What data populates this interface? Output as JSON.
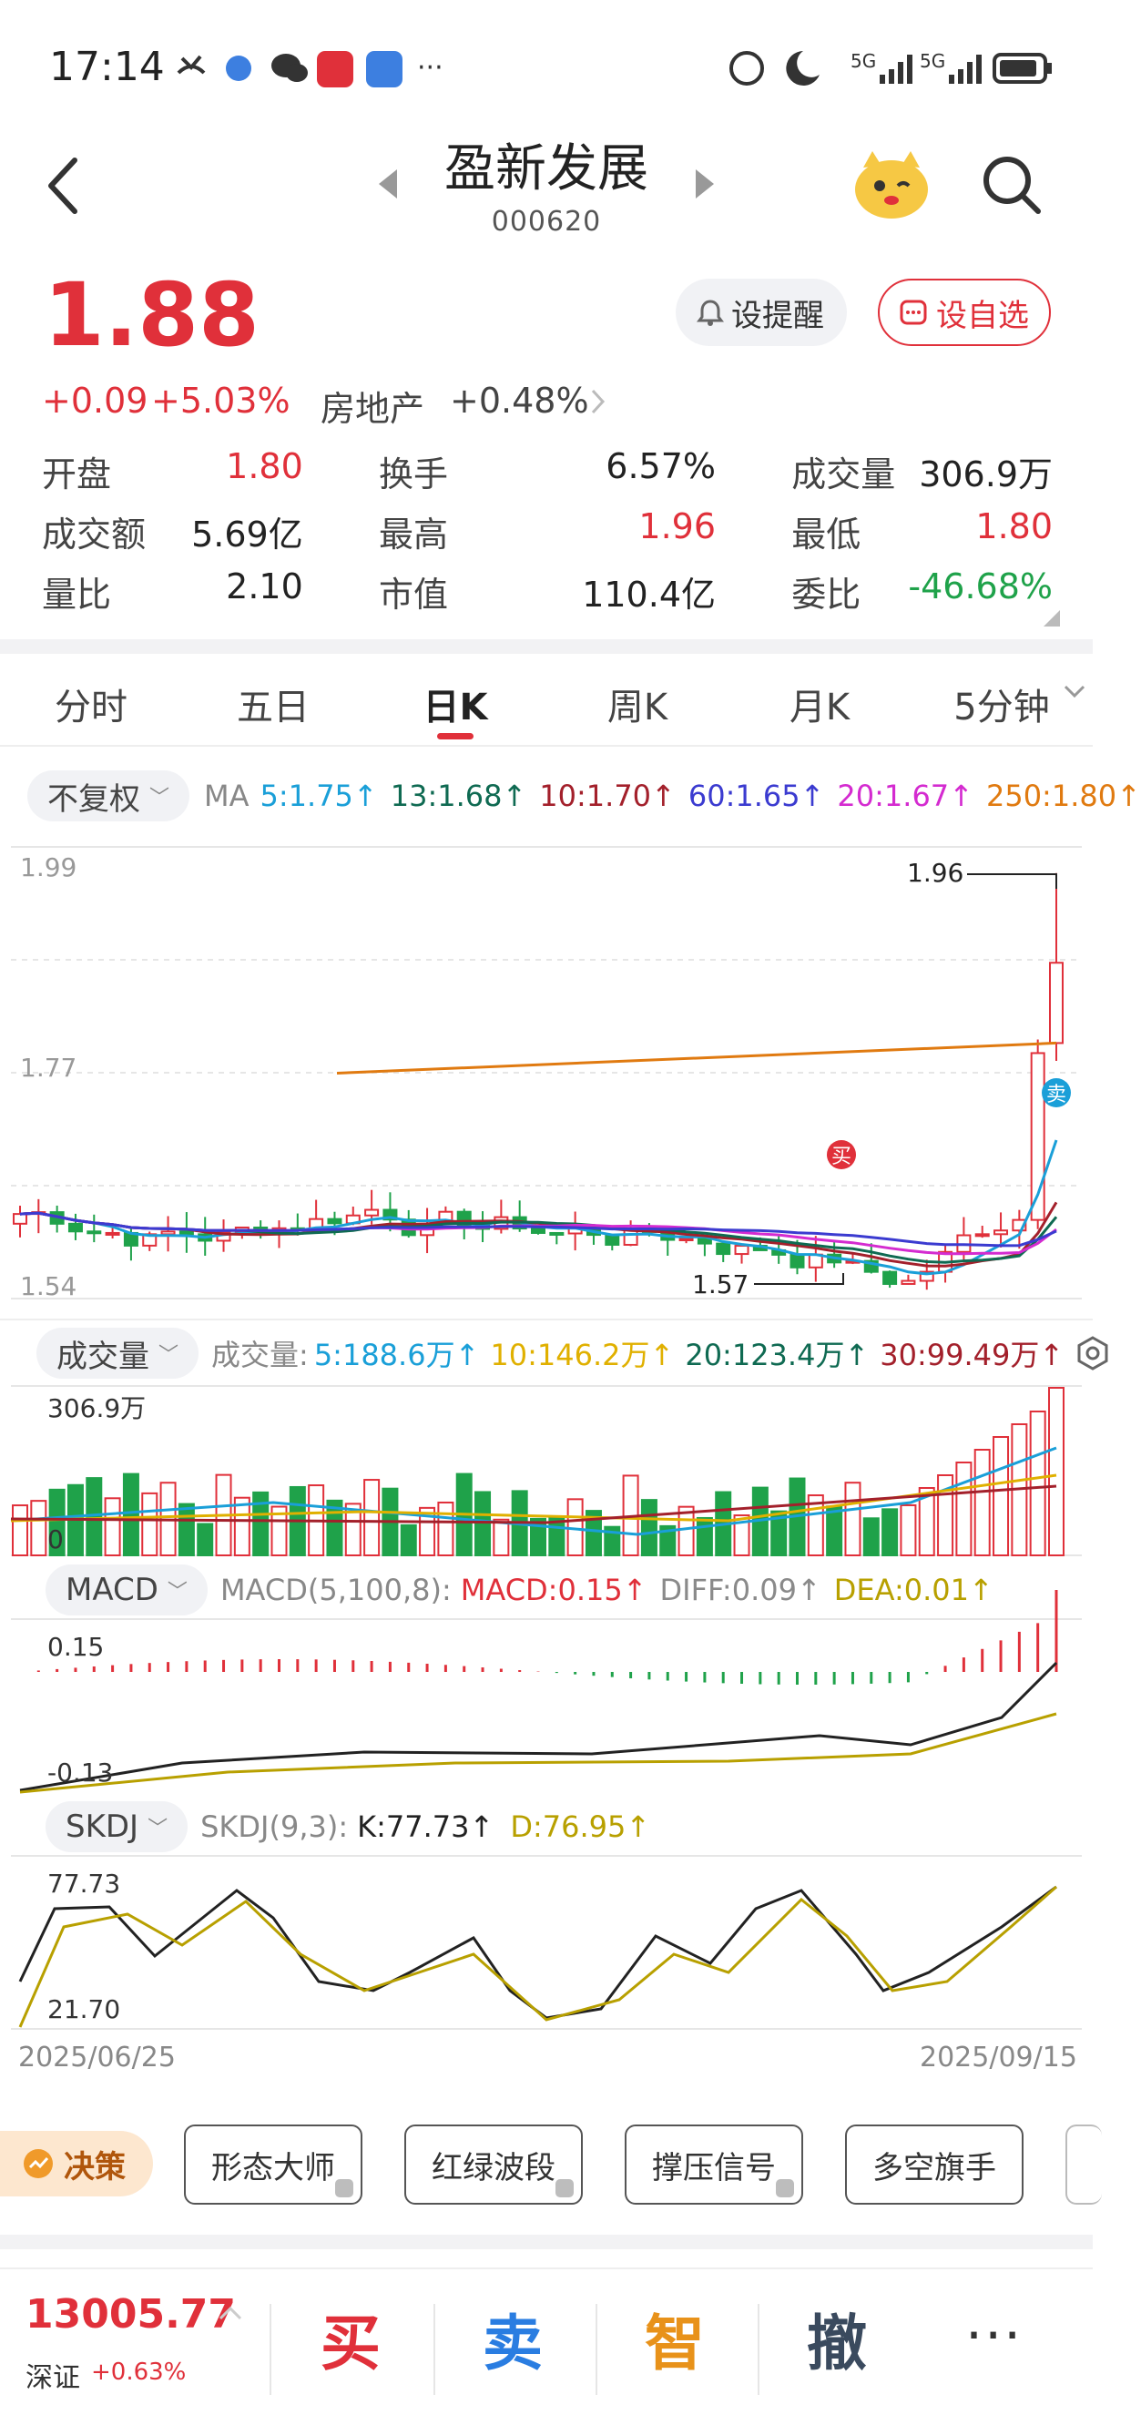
{
  "status_bar": {
    "time": "17:14",
    "signal1": "5G",
    "signal2": "5G"
  },
  "header": {
    "title": "盈新发展",
    "code": "000620"
  },
  "quote": {
    "price": "1.88",
    "change": "+0.09",
    "change_pct": "+5.03%",
    "sector": "房地产",
    "sector_pct": "+0.48%",
    "alert_label": "设提醒",
    "watch_label": "设自选"
  },
  "stats": [
    [
      {
        "k": "开盘",
        "v": "1.80",
        "c": "red"
      },
      {
        "k": "换手",
        "v": "6.57%",
        "c": "dark"
      },
      {
        "k": "成交量",
        "v": "306.9万",
        "c": "dark"
      }
    ],
    [
      {
        "k": "成交额",
        "v": "5.69亿",
        "c": "dark"
      },
      {
        "k": "最高",
        "v": "1.96",
        "c": "red"
      },
      {
        "k": "最低",
        "v": "1.80",
        "c": "red"
      }
    ],
    [
      {
        "k": "量比",
        "v": "2.10",
        "c": "dark"
      },
      {
        "k": "市值",
        "v": "110.4亿",
        "c": "dark"
      },
      {
        "k": "委比",
        "v": "-46.68%",
        "c": "green"
      }
    ]
  ],
  "tabs": [
    "分时",
    "五日",
    "日K",
    "周K",
    "月K",
    "5分钟"
  ],
  "active_tab": 2,
  "ma_legend": {
    "adjust": "不复权",
    "prefix": "MA",
    "items": [
      {
        "label": "5:1.75↑",
        "color": "#1a9fd8"
      },
      {
        "label": "13:1.68↑",
        "color": "#0f6a52"
      },
      {
        "label": "10:1.70↑",
        "color": "#a3202b"
      },
      {
        "label": "60:1.65↑",
        "color": "#3b3bd0"
      },
      {
        "label": "20:1.67↑",
        "color": "#d42bd0"
      },
      {
        "label": "250:1.80↑",
        "color": "#e07a10"
      }
    ]
  },
  "price_chart": {
    "y_top": "1.99",
    "y_mid": "1.77",
    "y_bottom": "1.54",
    "high_mark": "1.96",
    "low_mark": "1.57",
    "buy_tag": "买",
    "sell_tag": "卖"
  },
  "volume_legend": {
    "chip": "成交量",
    "prefix": "成交量:",
    "items": [
      {
        "label": "5:188.6万↑",
        "color": "#1a9fd8"
      },
      {
        "label": "10:146.2万↑",
        "color": "#e0b000"
      },
      {
        "label": "20:123.4万↑",
        "color": "#0f6a52"
      },
      {
        "label": "30:99.49万↑",
        "color": "#a3202b"
      }
    ],
    "y_top": "306.9万",
    "y_bottom": "0"
  },
  "macd_legend": {
    "chip": "MACD",
    "params": "MACD(5,100,8):",
    "items": [
      {
        "label": "MACD:0.15↑",
        "color": "#e0303a"
      },
      {
        "label": "DIFF:0.09↑",
        "color": "#8a8a8a"
      },
      {
        "label": "DEA:0.01↑",
        "color": "#b8a000"
      }
    ],
    "y_top": "0.15",
    "y_bottom": "-0.13"
  },
  "skdj_legend": {
    "chip": "SKDJ",
    "params": "SKDJ(9,3):",
    "items": [
      {
        "label": "K:77.73↑",
        "color": "#222222"
      },
      {
        "label": "D:76.95↑",
        "color": "#b8a000"
      }
    ],
    "y_top": "77.73",
    "y_bottom": "21.70"
  },
  "date_range": {
    "start": "2025/06/25",
    "end": "2025/09/15"
  },
  "features": {
    "badge": "决策",
    "buttons": [
      "形态大师",
      "红绿波段",
      "撑压信号",
      "多空旗手"
    ]
  },
  "bottom": {
    "index_value": "13005.77",
    "index_name": "深证",
    "index_pct": "+0.63%",
    "actions": [
      {
        "label": "买",
        "color": "#e0303a"
      },
      {
        "label": "卖",
        "color": "#2a7de1"
      },
      {
        "label": "智",
        "color": "#e8921a"
      },
      {
        "label": "撤",
        "color": "#3a4a5e"
      }
    ],
    "more": "···"
  }
}
